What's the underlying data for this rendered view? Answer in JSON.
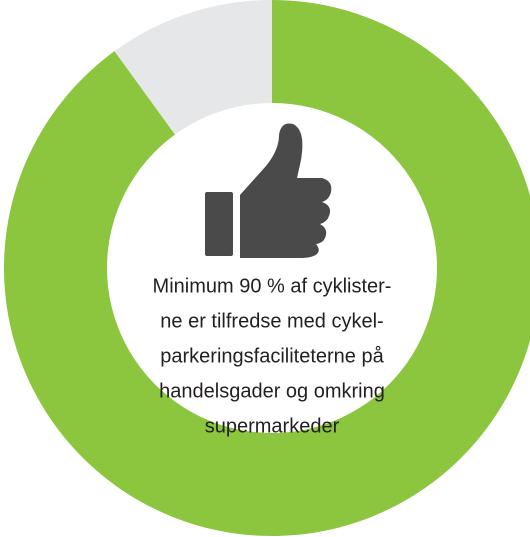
{
  "chart_data": {
    "type": "donut",
    "values": [
      90,
      10
    ],
    "colors": [
      "#8cc63f",
      "#e6e7e8"
    ],
    "center_text": [
      "Minimum 90 % af cyklister-",
      "ne er tilfredse med cykel-",
      "parkeringsfaciliteterne på",
      "handelsgader og omkring",
      "supermarkeder"
    ]
  }
}
